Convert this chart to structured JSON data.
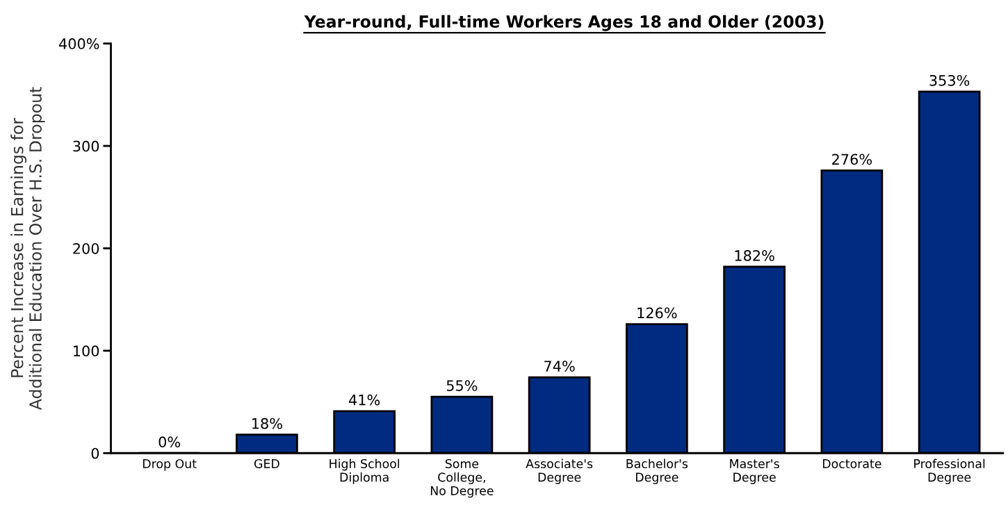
{
  "chart_data": {
    "type": "bar",
    "title": "Year-round, Full-time Workers Ages 18 and Older (2003)",
    "ylabel": "Percent Increase in Earnings for\nAdditional Education Over H.S. Dropout",
    "categories": [
      "Drop Out",
      "GED",
      "High School\nDiploma",
      "Some\nCollege,\nNo Degree",
      "Associate's\nDegree",
      "Bachelor's\nDegree",
      "Master's\nDegree",
      "Doctorate",
      "Professional\nDegree"
    ],
    "values": [
      0,
      18,
      41,
      55,
      74,
      126,
      182,
      276,
      353
    ],
    "value_labels": [
      "0%",
      "18%",
      "41%",
      "55%",
      "74%",
      "126%",
      "182%",
      "276%",
      "353%"
    ],
    "color": "#002b80",
    "ylim": [
      0,
      400
    ],
    "yticks": [
      0,
      100,
      200,
      300,
      {
        "value": 400,
        "label": "400%"
      }
    ],
    "grid": false,
    "legend": false
  }
}
